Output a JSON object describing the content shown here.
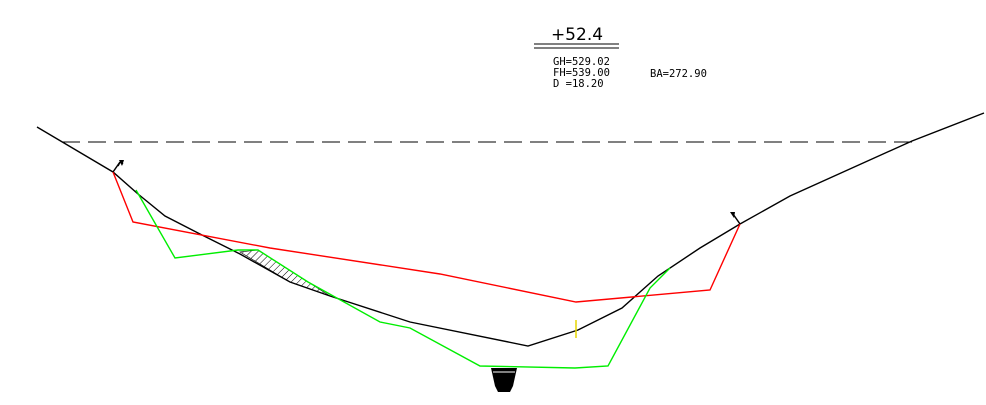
{
  "section": {
    "station": "+52.4",
    "gh": "GH=529.02",
    "fh": "FH=539.00",
    "d": "D =18.20",
    "ba": "BA=272.90"
  },
  "colors": {
    "background": "#ffffff",
    "ground_line": "#000000",
    "design_line": "#ff0000",
    "excavation_line": "#00ff00",
    "marker": "#ffff00",
    "dashed_line": "#000000"
  }
}
